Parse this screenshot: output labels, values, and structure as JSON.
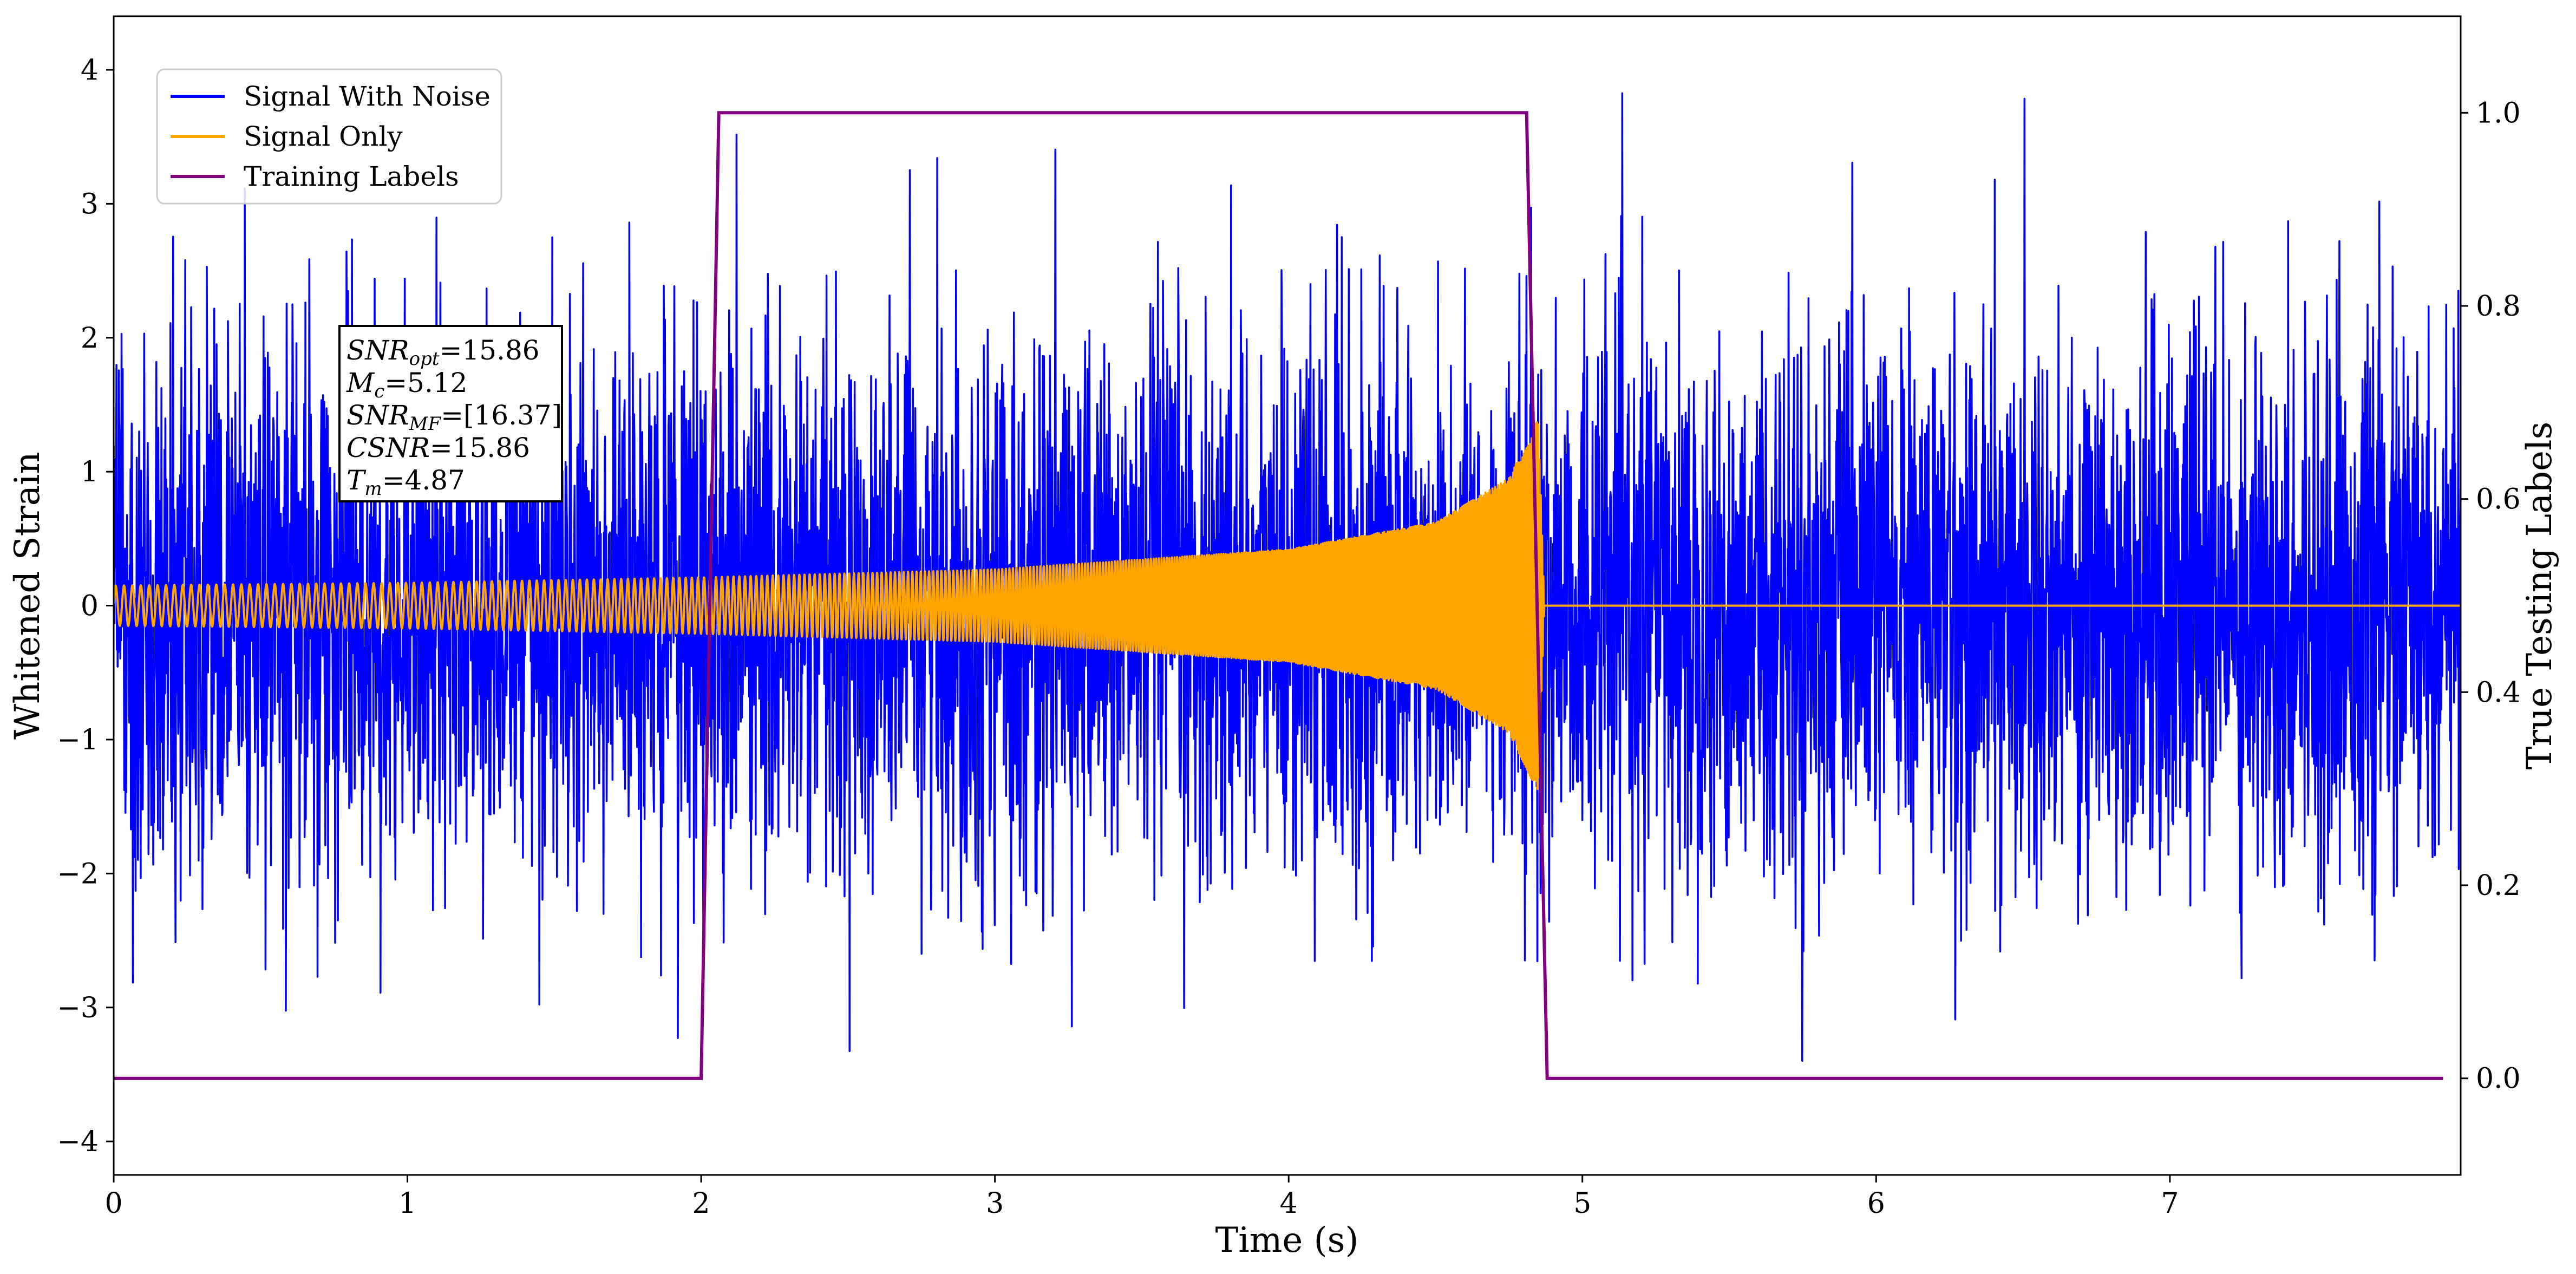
{
  "chart_data": {
    "type": "line",
    "xlabel": "Time (s)",
    "ylabel": "Whitened Strain",
    "y2label": "True Testing Labels",
    "xlim": [
      0,
      7.99
    ],
    "ylim": [
      -4.25,
      4.4
    ],
    "y2lim": [
      -0.1,
      1.1
    ],
    "x_ticks": [
      0,
      1,
      2,
      3,
      4,
      5,
      6,
      7
    ],
    "y_ticks": [
      -4,
      -3,
      -2,
      -1,
      0,
      1,
      2,
      3,
      4
    ],
    "y2_ticks": [
      0.0,
      0.2,
      0.4,
      0.6,
      0.8,
      1.0
    ],
    "y_tick_labels": [
      "−4",
      "−3",
      "−2",
      "−1",
      "0",
      "1",
      "2",
      "3",
      "4"
    ],
    "y2_tick_labels": [
      "0.0",
      "0.2",
      "0.4",
      "0.6",
      "0.8",
      "1.0"
    ],
    "legend_position": "top-left",
    "grid": false,
    "series": [
      {
        "name": "Signal With Noise",
        "color": "#0000ff",
        "axis": "left",
        "kind": "gaussian-noise",
        "noise_std": 1.0,
        "x_range": [
          0,
          7.99
        ]
      },
      {
        "name": "Signal Only",
        "color": "#ffa500",
        "axis": "left",
        "kind": "chirp",
        "x_range": [
          0,
          7.99
        ],
        "merger_time": 4.87,
        "envelope": [
          {
            "t": 0.0,
            "amp": 0.15
          },
          {
            "t": 1.0,
            "amp": 0.17
          },
          {
            "t": 2.0,
            "amp": 0.21
          },
          {
            "t": 3.0,
            "amp": 0.27
          },
          {
            "t": 4.0,
            "amp": 0.42
          },
          {
            "t": 4.5,
            "amp": 0.62
          },
          {
            "t": 4.75,
            "amp": 0.95
          },
          {
            "t": 4.85,
            "amp": 1.4
          },
          {
            "t": 4.87,
            "amp": 0.02
          }
        ],
        "freq_start": 35,
        "freq_end": 230
      },
      {
        "name": "Training Labels",
        "color": "#800080",
        "axis": "right",
        "kind": "step",
        "points": [
          {
            "x": 0.0,
            "y": 0.0
          },
          {
            "x": 2.0,
            "y": 0.0
          },
          {
            "x": 2.06,
            "y": 1.0
          },
          {
            "x": 4.81,
            "y": 1.0
          },
          {
            "x": 4.88,
            "y": 0.0
          },
          {
            "x": 7.93,
            "y": 0.0
          }
        ]
      }
    ],
    "annotation": {
      "lines": [
        {
          "sym": "SNR",
          "sub": "opt",
          "value": "=15.86"
        },
        {
          "sym": "M",
          "sub": "c",
          "value": "=5.12"
        },
        {
          "sym": "SNR",
          "sub": "MF",
          "value": "=[16.37]"
        },
        {
          "sym": "CSNR",
          "sub": "",
          "value": "=15.86"
        },
        {
          "sym": "T",
          "sub": "m",
          "value": "=4.87"
        }
      ]
    }
  }
}
